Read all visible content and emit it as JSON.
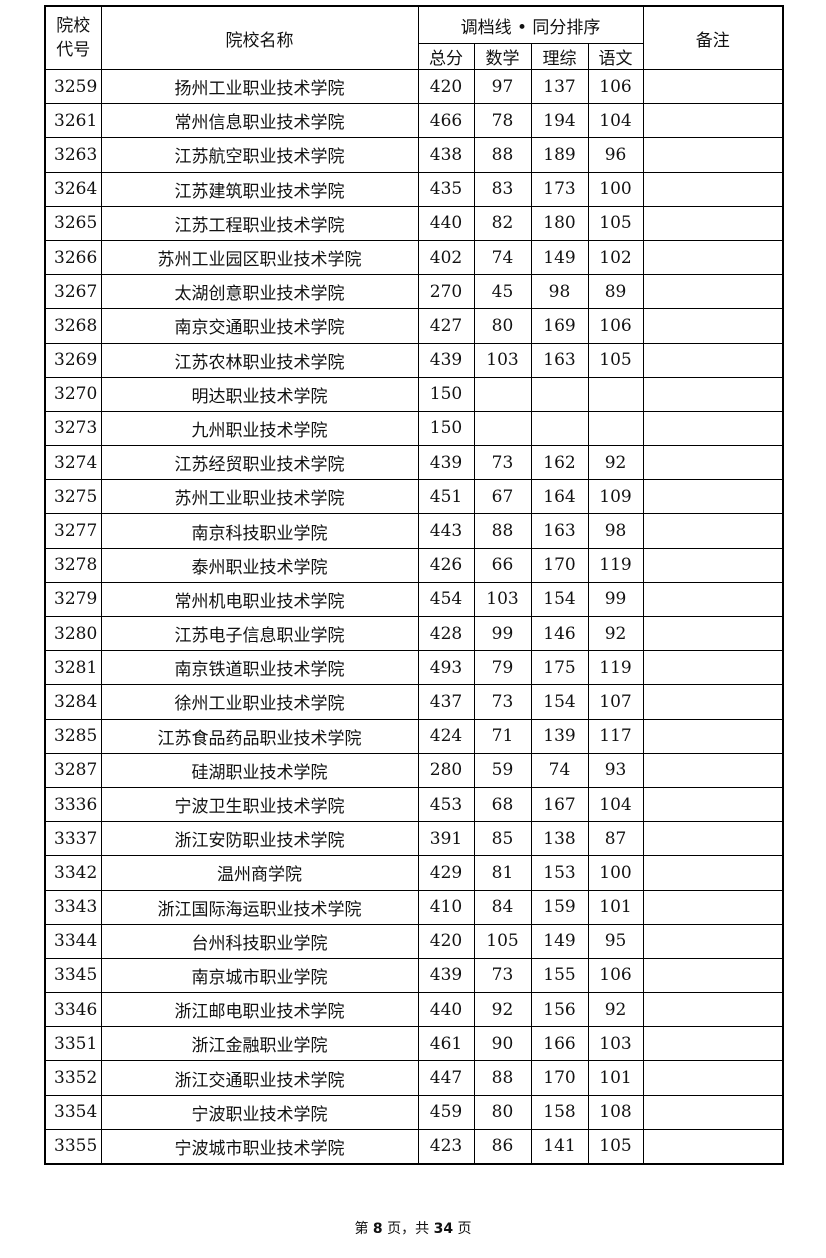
{
  "header": {
    "code": "院校\n代号",
    "code_line1": "院校",
    "code_line2": "代号",
    "name": "院校名称",
    "group": "调档线 • 同分排序",
    "total": "总分",
    "math": "数学",
    "science": "理综",
    "chinese": "语文",
    "remark": "备注"
  },
  "rows": [
    {
      "code": "3259",
      "name": "扬州工业职业技术学院",
      "total": "420",
      "math": "97",
      "science": "137",
      "chinese": "106",
      "remark": ""
    },
    {
      "code": "3261",
      "name": "常州信息职业技术学院",
      "total": "466",
      "math": "78",
      "science": "194",
      "chinese": "104",
      "remark": ""
    },
    {
      "code": "3263",
      "name": "江苏航空职业技术学院",
      "total": "438",
      "math": "88",
      "science": "189",
      "chinese": "96",
      "remark": ""
    },
    {
      "code": "3264",
      "name": "江苏建筑职业技术学院",
      "total": "435",
      "math": "83",
      "science": "173",
      "chinese": "100",
      "remark": ""
    },
    {
      "code": "3265",
      "name": "江苏工程职业技术学院",
      "total": "440",
      "math": "82",
      "science": "180",
      "chinese": "105",
      "remark": ""
    },
    {
      "code": "3266",
      "name": "苏州工业园区职业技术学院",
      "total": "402",
      "math": "74",
      "science": "149",
      "chinese": "102",
      "remark": ""
    },
    {
      "code": "3267",
      "name": "太湖创意职业技术学院",
      "total": "270",
      "math": "45",
      "science": "98",
      "chinese": "89",
      "remark": ""
    },
    {
      "code": "3268",
      "name": "南京交通职业技术学院",
      "total": "427",
      "math": "80",
      "science": "169",
      "chinese": "106",
      "remark": ""
    },
    {
      "code": "3269",
      "name": "江苏农林职业技术学院",
      "total": "439",
      "math": "103",
      "science": "163",
      "chinese": "105",
      "remark": ""
    },
    {
      "code": "3270",
      "name": "明达职业技术学院",
      "total": "150",
      "math": "",
      "science": "",
      "chinese": "",
      "remark": ""
    },
    {
      "code": "3273",
      "name": "九州职业技术学院",
      "total": "150",
      "math": "",
      "science": "",
      "chinese": "",
      "remark": ""
    },
    {
      "code": "3274",
      "name": "江苏经贸职业技术学院",
      "total": "439",
      "math": "73",
      "science": "162",
      "chinese": "92",
      "remark": ""
    },
    {
      "code": "3275",
      "name": "苏州工业职业技术学院",
      "total": "451",
      "math": "67",
      "science": "164",
      "chinese": "109",
      "remark": ""
    },
    {
      "code": "3277",
      "name": "南京科技职业学院",
      "total": "443",
      "math": "88",
      "science": "163",
      "chinese": "98",
      "remark": ""
    },
    {
      "code": "3278",
      "name": "泰州职业技术学院",
      "total": "426",
      "math": "66",
      "science": "170",
      "chinese": "119",
      "remark": ""
    },
    {
      "code": "3279",
      "name": "常州机电职业技术学院",
      "total": "454",
      "math": "103",
      "science": "154",
      "chinese": "99",
      "remark": ""
    },
    {
      "code": "3280",
      "name": "江苏电子信息职业学院",
      "total": "428",
      "math": "99",
      "science": "146",
      "chinese": "92",
      "remark": ""
    },
    {
      "code": "3281",
      "name": "南京铁道职业技术学院",
      "total": "493",
      "math": "79",
      "science": "175",
      "chinese": "119",
      "remark": ""
    },
    {
      "code": "3284",
      "name": "徐州工业职业技术学院",
      "total": "437",
      "math": "73",
      "science": "154",
      "chinese": "107",
      "remark": ""
    },
    {
      "code": "3285",
      "name": "江苏食品药品职业技术学院",
      "total": "424",
      "math": "71",
      "science": "139",
      "chinese": "117",
      "remark": ""
    },
    {
      "code": "3287",
      "name": "硅湖职业技术学院",
      "total": "280",
      "math": "59",
      "science": "74",
      "chinese": "93",
      "remark": ""
    },
    {
      "code": "3336",
      "name": "宁波卫生职业技术学院",
      "total": "453",
      "math": "68",
      "science": "167",
      "chinese": "104",
      "remark": ""
    },
    {
      "code": "3337",
      "name": "浙江安防职业技术学院",
      "total": "391",
      "math": "85",
      "science": "138",
      "chinese": "87",
      "remark": ""
    },
    {
      "code": "3342",
      "name": "温州商学院",
      "total": "429",
      "math": "81",
      "science": "153",
      "chinese": "100",
      "remark": ""
    },
    {
      "code": "3343",
      "name": "浙江国际海运职业技术学院",
      "total": "410",
      "math": "84",
      "science": "159",
      "chinese": "101",
      "remark": ""
    },
    {
      "code": "3344",
      "name": "台州科技职业学院",
      "total": "420",
      "math": "105",
      "science": "149",
      "chinese": "95",
      "remark": ""
    },
    {
      "code": "3345",
      "name": "南京城市职业学院",
      "total": "439",
      "math": "73",
      "science": "155",
      "chinese": "106",
      "remark": ""
    },
    {
      "code": "3346",
      "name": "浙江邮电职业技术学院",
      "total": "440",
      "math": "92",
      "science": "156",
      "chinese": "92",
      "remark": ""
    },
    {
      "code": "3351",
      "name": "浙江金融职业学院",
      "total": "461",
      "math": "90",
      "science": "166",
      "chinese": "103",
      "remark": ""
    },
    {
      "code": "3352",
      "name": "浙江交通职业技术学院",
      "total": "447",
      "math": "88",
      "science": "170",
      "chinese": "101",
      "remark": ""
    },
    {
      "code": "3354",
      "name": "宁波职业技术学院",
      "total": "459",
      "math": "80",
      "science": "158",
      "chinese": "108",
      "remark": ""
    },
    {
      "code": "3355",
      "name": "宁波城市职业技术学院",
      "total": "423",
      "math": "86",
      "science": "141",
      "chinese": "105",
      "remark": ""
    }
  ],
  "footer": {
    "prefix": "第 ",
    "page": "8",
    "middle": " 页，共 ",
    "total": "34",
    "suffix": " 页"
  }
}
